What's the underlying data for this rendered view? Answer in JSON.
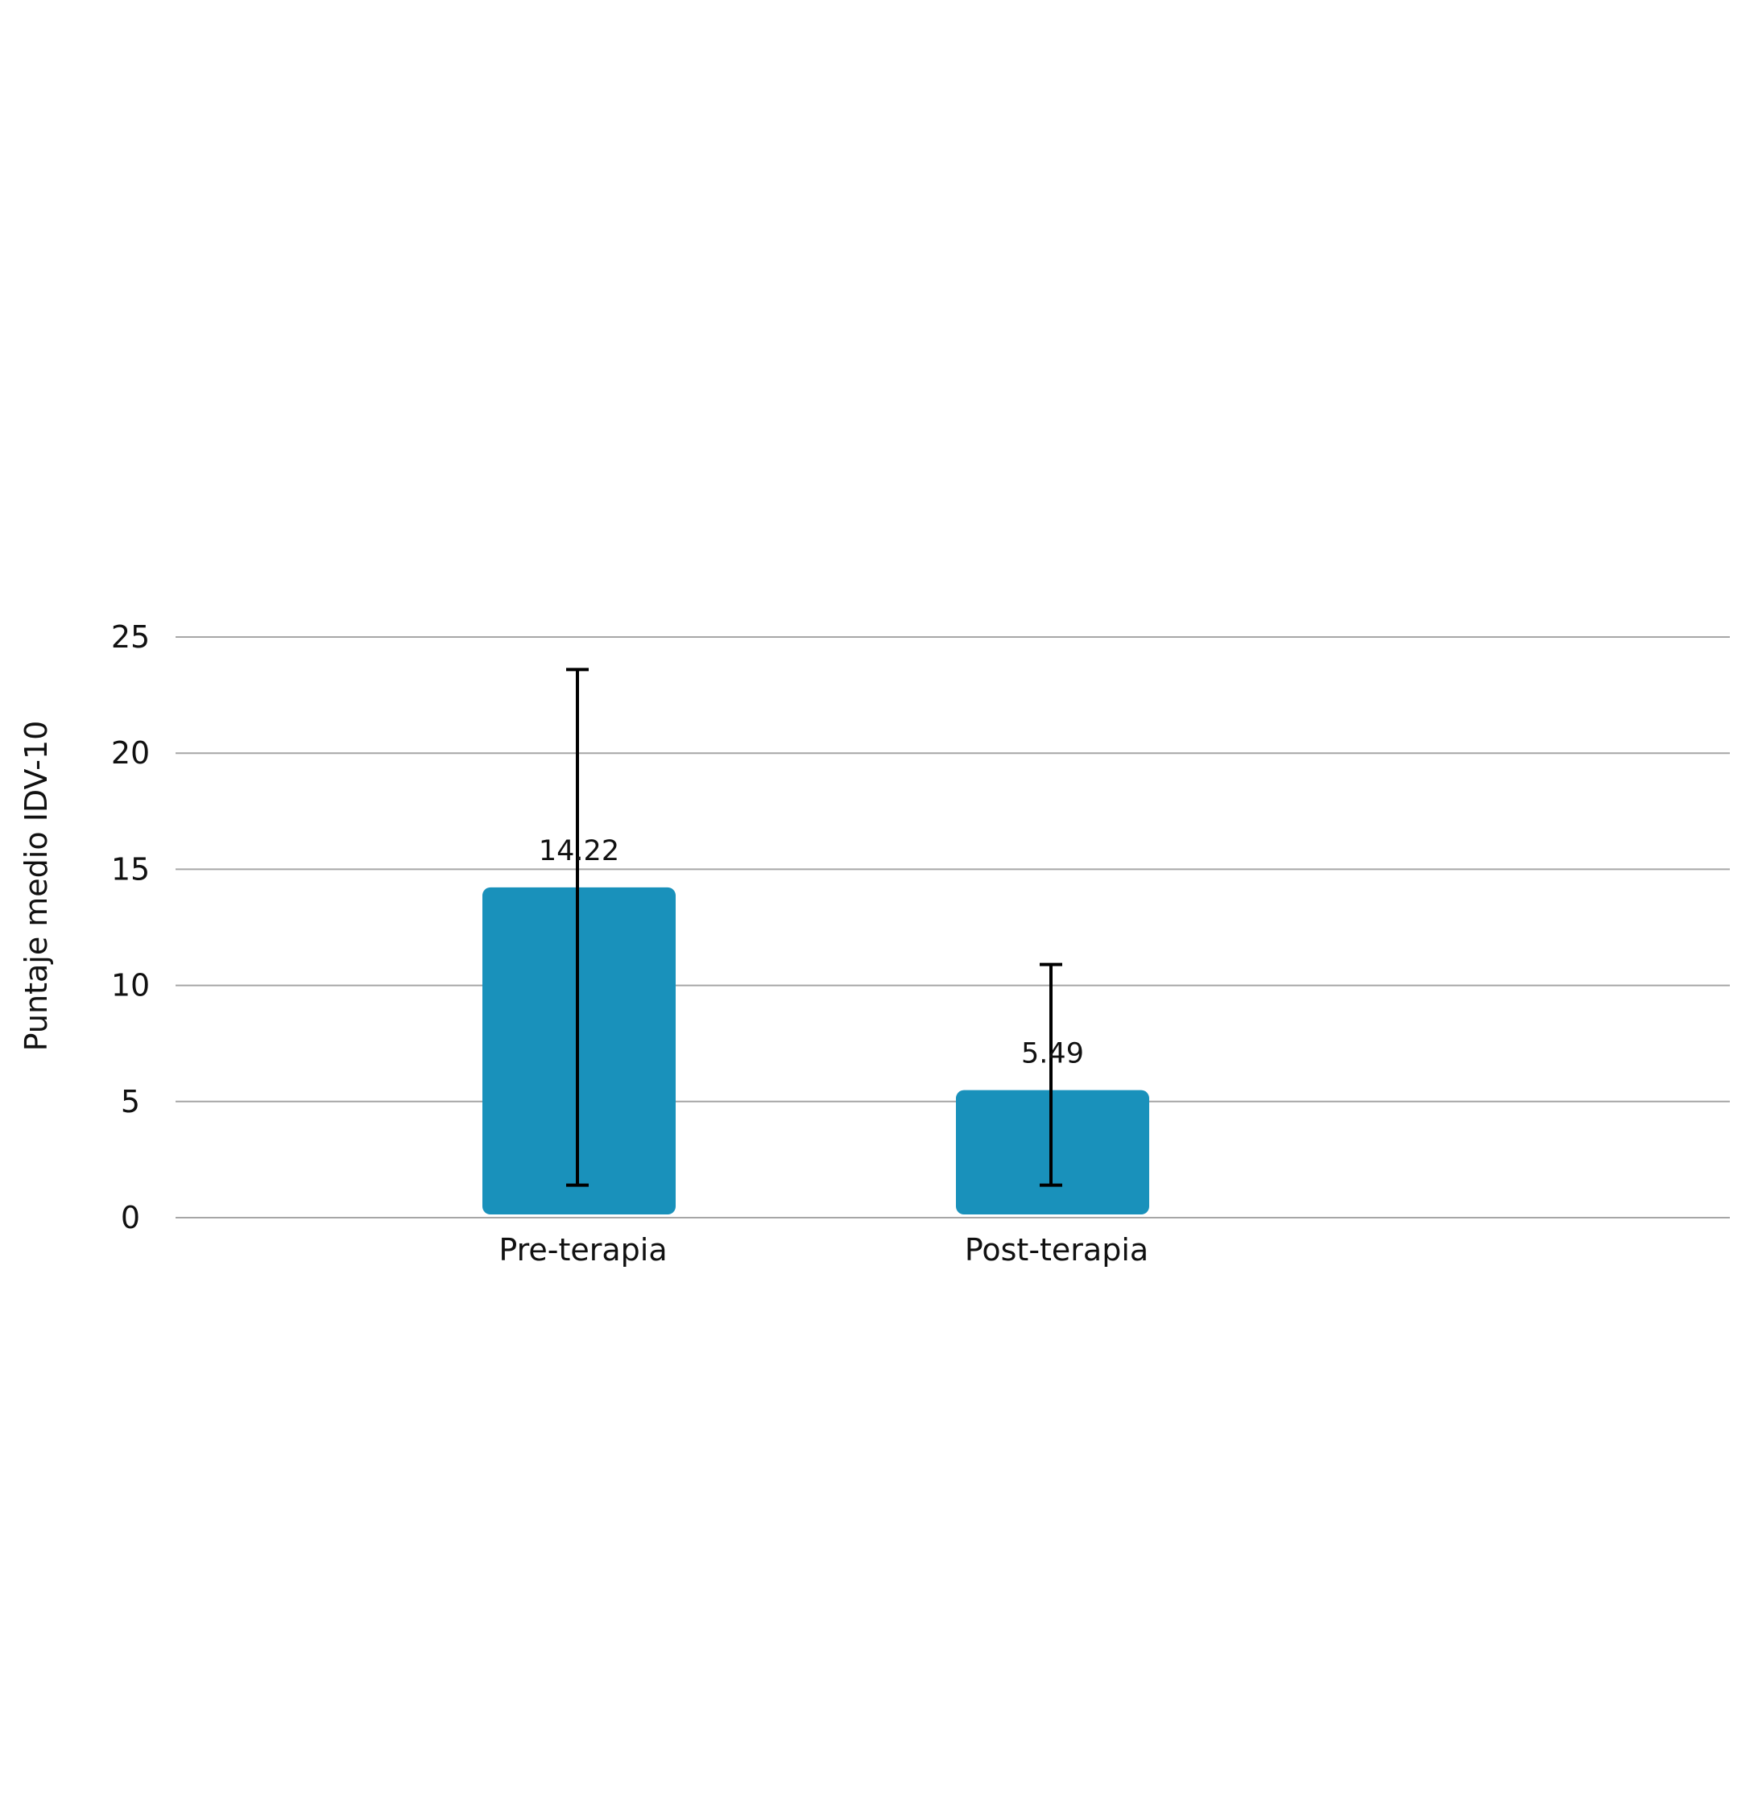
{
  "chart_data": {
    "type": "bar",
    "categories": [
      "Pre-terapia",
      "Post-terapia"
    ],
    "values": [
      14.22,
      5.49
    ],
    "data_labels": [
      "14.22",
      "5.49"
    ],
    "error_bars": [
      {
        "low": 1.4,
        "high": 23.6
      },
      {
        "low": 1.4,
        "high": 10.9
      }
    ],
    "title": "",
    "xlabel": "",
    "ylabel": "Puntaje medio IDV-10",
    "yticks": [
      "0",
      "5",
      "10",
      "15",
      "20",
      "25"
    ],
    "ylim": [
      0,
      25
    ],
    "grid": true,
    "legend": "none",
    "colors": {
      "bar": "#1991BB",
      "grid": "#A6A6A6",
      "error": "#000000",
      "text": "#111111"
    }
  }
}
